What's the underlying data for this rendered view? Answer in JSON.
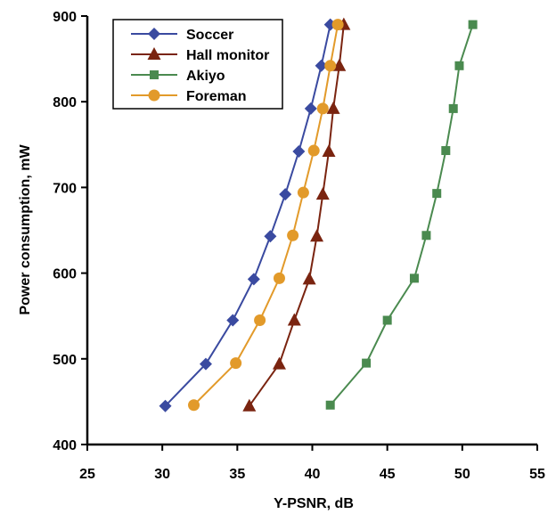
{
  "chart_data": {
    "type": "line",
    "xlabel": "Y-PSNR, dB",
    "ylabel": "Power consumption, mW",
    "xlim": [
      25,
      55
    ],
    "ylim": [
      400,
      900
    ],
    "xticks": [
      "25",
      "30",
      "35",
      "40",
      "45",
      "50",
      "55"
    ],
    "yticks": [
      "400",
      "500",
      "600",
      "700",
      "800",
      "900"
    ],
    "legend_position": "top-left",
    "grid": false,
    "series": [
      {
        "name": "Soccer",
        "color": "#3a4aa0",
        "marker": "diamond",
        "x": [
          30.2,
          32.9,
          34.7,
          36.1,
          37.2,
          38.2,
          39.1,
          39.9,
          40.6,
          41.2
        ],
        "y": [
          445,
          494,
          545,
          593,
          643,
          692,
          742,
          792,
          842,
          890
        ]
      },
      {
        "name": "Hall monitor",
        "color": "#7a2410",
        "marker": "triangle",
        "x": [
          35.8,
          37.8,
          38.8,
          39.8,
          40.3,
          40.7,
          41.1,
          41.4,
          41.8,
          42.1
        ],
        "y": [
          445,
          494,
          545,
          593,
          643,
          692,
          742,
          792,
          842,
          890
        ]
      },
      {
        "name": "Akiyo",
        "color": "#4a8a4f",
        "marker": "square",
        "x": [
          41.2,
          43.6,
          45.0,
          46.8,
          47.6,
          48.3,
          48.9,
          49.4,
          49.8,
          50.7
        ],
        "y": [
          446,
          495,
          545,
          594,
          644,
          693,
          743,
          792,
          842,
          890
        ]
      },
      {
        "name": "Foreman",
        "color": "#e29a2a",
        "marker": "circle",
        "x": [
          32.1,
          34.9,
          36.5,
          37.8,
          38.7,
          39.4,
          40.1,
          40.7,
          41.2,
          41.7
        ],
        "y": [
          446,
          495,
          545,
          594,
          644,
          694,
          743,
          792,
          842,
          890
        ]
      }
    ]
  }
}
